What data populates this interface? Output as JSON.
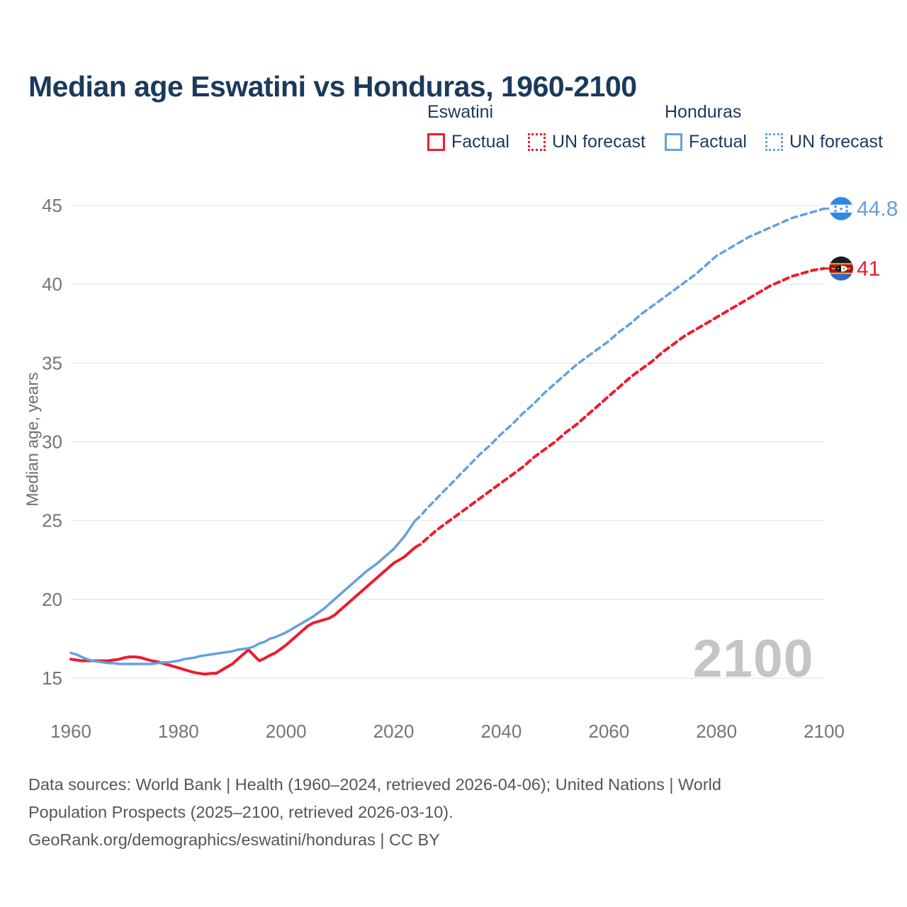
{
  "title": "Median age Eswatini vs Honduras, 1960-2100",
  "colors": {
    "eswatini_red": "#ed1b2e",
    "honduras_blue": "#64a1dd",
    "honduras_flag_blue": "#2f87e0",
    "eswatini_flag_crimson": "#b11117",
    "eswatini_flag_yellow": "#f5c400",
    "title_text": "#1b3a5c",
    "axis_text": "#757575",
    "gridline": "#e8e8e8",
    "watermark_gray": "#c5c5c5",
    "footer_text": "#565656"
  },
  "legend": {
    "groups": [
      {
        "country": "Eswatini",
        "color": "#ed1b2e",
        "items": [
          {
            "label": "Factual",
            "style": "solid"
          },
          {
            "label": "UN forecast",
            "style": "dashed"
          }
        ]
      },
      {
        "country": "Honduras",
        "color": "#64a1dd",
        "items": [
          {
            "label": "Factual",
            "style": "solid"
          },
          {
            "label": "UN forecast",
            "style": "dashed"
          }
        ]
      }
    ]
  },
  "chart_data": {
    "type": "line",
    "title": "Median age Eswatini vs Honduras, 1960-2100",
    "xlabel": "",
    "ylabel": "Median age, years",
    "xlim": [
      1960,
      2100
    ],
    "ylim": [
      15,
      45
    ],
    "x_ticks": [
      1960,
      1980,
      2000,
      2020,
      2040,
      2060,
      2080,
      2100
    ],
    "y_ticks": [
      15,
      20,
      25,
      30,
      35,
      40,
      45
    ],
    "grid": "horizontal-only",
    "legend_position": "top-right",
    "watermark": "2100",
    "series": [
      {
        "name": "Eswatini Factual",
        "country": "Eswatini",
        "style": "solid",
        "color": "#ed1b2e",
        "width": 4,
        "points": [
          [
            1960,
            16.2
          ],
          [
            1961,
            16.15
          ],
          [
            1962,
            16.1
          ],
          [
            1963,
            16.1
          ],
          [
            1964,
            16.1
          ],
          [
            1965,
            16.1
          ],
          [
            1966,
            16.1
          ],
          [
            1967,
            16.1
          ],
          [
            1968,
            16.15
          ],
          [
            1969,
            16.2
          ],
          [
            1970,
            16.3
          ],
          [
            1971,
            16.35
          ],
          [
            1972,
            16.35
          ],
          [
            1973,
            16.3
          ],
          [
            1974,
            16.2
          ],
          [
            1975,
            16.1
          ],
          [
            1976,
            16.05
          ],
          [
            1977,
            15.95
          ],
          [
            1978,
            15.85
          ],
          [
            1979,
            15.75
          ],
          [
            1980,
            15.65
          ],
          [
            1981,
            15.55
          ],
          [
            1982,
            15.45
          ],
          [
            1983,
            15.35
          ],
          [
            1984,
            15.3
          ],
          [
            1985,
            15.25
          ],
          [
            1986,
            15.3
          ],
          [
            1987,
            15.3
          ],
          [
            1988,
            15.5
          ],
          [
            1989,
            15.7
          ],
          [
            1990,
            15.9
          ],
          [
            1991,
            16.2
          ],
          [
            1992,
            16.5
          ],
          [
            1993,
            16.8
          ],
          [
            1994,
            16.45
          ],
          [
            1995,
            16.1
          ],
          [
            1996,
            16.25
          ],
          [
            1997,
            16.45
          ],
          [
            1998,
            16.6
          ],
          [
            1999,
            16.85
          ],
          [
            2000,
            17.1
          ],
          [
            2001,
            17.4
          ],
          [
            2002,
            17.7
          ],
          [
            2003,
            18.0
          ],
          [
            2004,
            18.3
          ],
          [
            2005,
            18.5
          ],
          [
            2006,
            18.6
          ],
          [
            2007,
            18.7
          ],
          [
            2008,
            18.8
          ],
          [
            2009,
            19.0
          ],
          [
            2010,
            19.3
          ],
          [
            2011,
            19.6
          ],
          [
            2012,
            19.9
          ],
          [
            2013,
            20.2
          ],
          [
            2014,
            20.5
          ],
          [
            2015,
            20.8
          ],
          [
            2016,
            21.1
          ],
          [
            2017,
            21.4
          ],
          [
            2018,
            21.7
          ],
          [
            2019,
            22.0
          ],
          [
            2020,
            22.3
          ],
          [
            2021,
            22.5
          ],
          [
            2022,
            22.7
          ],
          [
            2023,
            23.0
          ],
          [
            2024,
            23.3
          ]
        ]
      },
      {
        "name": "Eswatini UN forecast",
        "country": "Eswatini",
        "style": "dashed",
        "color": "#ed1b2e",
        "width": 4,
        "points": [
          [
            2024,
            23.3
          ],
          [
            2025,
            23.5
          ],
          [
            2026,
            23.8
          ],
          [
            2028,
            24.4
          ],
          [
            2030,
            24.9
          ],
          [
            2032,
            25.4
          ],
          [
            2034,
            25.9
          ],
          [
            2036,
            26.4
          ],
          [
            2038,
            26.9
          ],
          [
            2040,
            27.4
          ],
          [
            2042,
            27.9
          ],
          [
            2044,
            28.4
          ],
          [
            2046,
            29.0
          ],
          [
            2048,
            29.5
          ],
          [
            2050,
            30.0
          ],
          [
            2052,
            30.6
          ],
          [
            2054,
            31.1
          ],
          [
            2056,
            31.7
          ],
          [
            2058,
            32.3
          ],
          [
            2060,
            32.9
          ],
          [
            2062,
            33.5
          ],
          [
            2064,
            34.1
          ],
          [
            2066,
            34.6
          ],
          [
            2068,
            35.1
          ],
          [
            2070,
            35.7
          ],
          [
            2072,
            36.2
          ],
          [
            2074,
            36.7
          ],
          [
            2076,
            37.1
          ],
          [
            2078,
            37.5
          ],
          [
            2080,
            37.9
          ],
          [
            2082,
            38.3
          ],
          [
            2084,
            38.7
          ],
          [
            2086,
            39.1
          ],
          [
            2088,
            39.5
          ],
          [
            2090,
            39.9
          ],
          [
            2092,
            40.2
          ],
          [
            2094,
            40.5
          ],
          [
            2096,
            40.7
          ],
          [
            2098,
            40.9
          ],
          [
            2100,
            41.0
          ]
        ]
      },
      {
        "name": "Honduras Factual",
        "country": "Honduras",
        "style": "solid",
        "color": "#64a1dd",
        "width": 3.5,
        "points": [
          [
            1960,
            16.6
          ],
          [
            1961,
            16.5
          ],
          [
            1962,
            16.35
          ],
          [
            1963,
            16.2
          ],
          [
            1964,
            16.1
          ],
          [
            1965,
            16.05
          ],
          [
            1966,
            16.0
          ],
          [
            1967,
            15.95
          ],
          [
            1968,
            15.95
          ],
          [
            1969,
            15.9
          ],
          [
            1970,
            15.9
          ],
          [
            1971,
            15.9
          ],
          [
            1972,
            15.9
          ],
          [
            1973,
            15.9
          ],
          [
            1974,
            15.9
          ],
          [
            1975,
            15.9
          ],
          [
            1976,
            15.95
          ],
          [
            1977,
            16.0
          ],
          [
            1978,
            16.0
          ],
          [
            1979,
            16.05
          ],
          [
            1980,
            16.1
          ],
          [
            1981,
            16.2
          ],
          [
            1982,
            16.25
          ],
          [
            1983,
            16.3
          ],
          [
            1984,
            16.4
          ],
          [
            1985,
            16.45
          ],
          [
            1986,
            16.5
          ],
          [
            1987,
            16.55
          ],
          [
            1988,
            16.6
          ],
          [
            1989,
            16.65
          ],
          [
            1990,
            16.7
          ],
          [
            1991,
            16.8
          ],
          [
            1992,
            16.85
          ],
          [
            1993,
            16.9
          ],
          [
            1994,
            17.0
          ],
          [
            1995,
            17.2
          ],
          [
            1996,
            17.3
          ],
          [
            1997,
            17.5
          ],
          [
            1998,
            17.6
          ],
          [
            1999,
            17.75
          ],
          [
            2000,
            17.9
          ],
          [
            2001,
            18.1
          ],
          [
            2002,
            18.3
          ],
          [
            2003,
            18.5
          ],
          [
            2004,
            18.7
          ],
          [
            2005,
            18.9
          ],
          [
            2006,
            19.15
          ],
          [
            2007,
            19.4
          ],
          [
            2008,
            19.7
          ],
          [
            2009,
            20.0
          ],
          [
            2010,
            20.3
          ],
          [
            2011,
            20.6
          ],
          [
            2012,
            20.9
          ],
          [
            2013,
            21.2
          ],
          [
            2014,
            21.5
          ],
          [
            2015,
            21.8
          ],
          [
            2016,
            22.05
          ],
          [
            2017,
            22.3
          ],
          [
            2018,
            22.6
          ],
          [
            2019,
            22.9
          ],
          [
            2020,
            23.2
          ],
          [
            2021,
            23.6
          ],
          [
            2022,
            24.0
          ],
          [
            2023,
            24.5
          ],
          [
            2024,
            25.0
          ]
        ]
      },
      {
        "name": "Honduras UN forecast",
        "country": "Honduras",
        "style": "dashed",
        "color": "#64a1dd",
        "width": 3.5,
        "points": [
          [
            2024,
            25.0
          ],
          [
            2025,
            25.3
          ],
          [
            2026,
            25.7
          ],
          [
            2028,
            26.4
          ],
          [
            2030,
            27.1
          ],
          [
            2032,
            27.8
          ],
          [
            2034,
            28.5
          ],
          [
            2036,
            29.2
          ],
          [
            2038,
            29.8
          ],
          [
            2040,
            30.5
          ],
          [
            2042,
            31.1
          ],
          [
            2044,
            31.8
          ],
          [
            2046,
            32.4
          ],
          [
            2048,
            33.1
          ],
          [
            2050,
            33.7
          ],
          [
            2052,
            34.3
          ],
          [
            2054,
            34.9
          ],
          [
            2056,
            35.4
          ],
          [
            2058,
            35.9
          ],
          [
            2060,
            36.4
          ],
          [
            2062,
            37.0
          ],
          [
            2064,
            37.5
          ],
          [
            2066,
            38.1
          ],
          [
            2068,
            38.6
          ],
          [
            2070,
            39.1
          ],
          [
            2072,
            39.6
          ],
          [
            2074,
            40.1
          ],
          [
            2076,
            40.6
          ],
          [
            2078,
            41.2
          ],
          [
            2080,
            41.8
          ],
          [
            2082,
            42.2
          ],
          [
            2084,
            42.6
          ],
          [
            2086,
            43.0
          ],
          [
            2088,
            43.3
          ],
          [
            2090,
            43.6
          ],
          [
            2092,
            43.9
          ],
          [
            2094,
            44.2
          ],
          [
            2096,
            44.4
          ],
          [
            2098,
            44.6
          ],
          [
            2100,
            44.8
          ]
        ]
      }
    ],
    "end_labels": [
      {
        "series": "Honduras UN forecast",
        "text": "44.8",
        "value": 44.8,
        "year": 2100,
        "color": "#64a1dd",
        "flag": "honduras"
      },
      {
        "series": "Eswatini UN forecast",
        "text": "41",
        "value": 41,
        "year": 2100,
        "color": "#ed1b2e",
        "flag": "eswatini"
      }
    ]
  },
  "footer": {
    "lines": [
      "Data sources: World Bank | Health (1960–2024, retrieved 2026-04-06); United Nations | World",
      "Population Prospects (2025–2100, retrieved 2026-03-10).",
      "GeoRank.org/demographics/eswatini/honduras | CC BY"
    ]
  }
}
